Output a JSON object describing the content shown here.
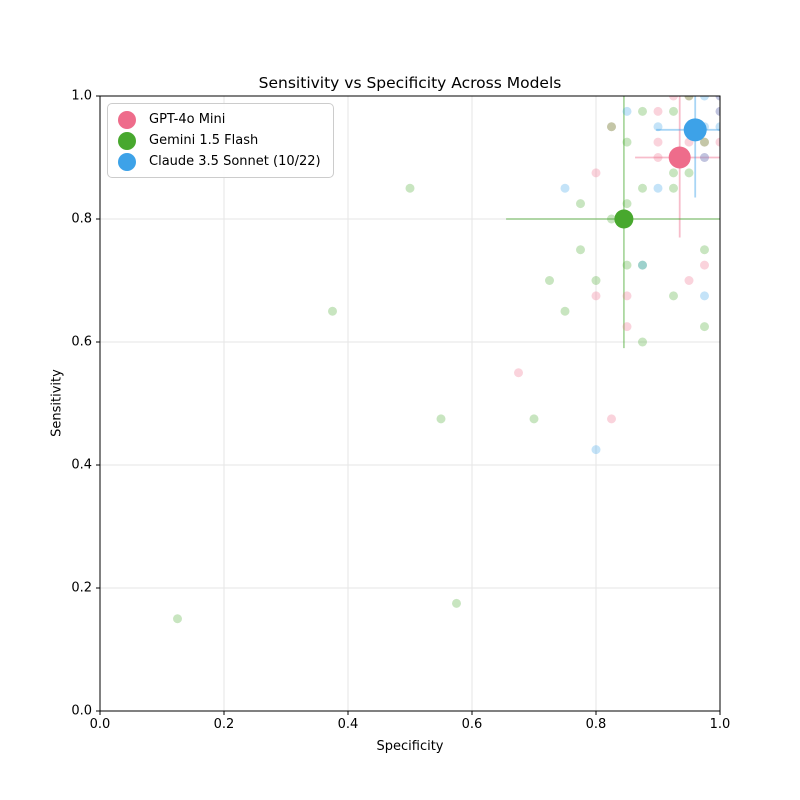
{
  "chart_data": {
    "type": "scatter",
    "title": "Sensitivity vs Specificity Across Models",
    "xlabel": "Specificity",
    "ylabel": "Sensitivity",
    "xlim": [
      0.0,
      1.0
    ],
    "ylim": [
      0.0,
      1.0
    ],
    "xticks": [
      0.0,
      0.2,
      0.4,
      0.6,
      0.8,
      1.0
    ],
    "yticks": [
      0.0,
      0.2,
      0.4,
      0.6,
      0.8,
      1.0
    ],
    "xtick_labels": [
      "0.0",
      "0.2",
      "0.4",
      "0.6",
      "0.8",
      "1.0"
    ],
    "ytick_labels": [
      "0.0",
      "0.2",
      "0.4",
      "0.6",
      "0.8",
      "1.0"
    ],
    "grid": true,
    "legend": {
      "position": "upper left",
      "entries": [
        "GPT-4o Mini",
        "Gemini 1.5 Flash",
        "Claude 3.5 Sonnet (10/22)"
      ]
    },
    "series": [
      {
        "name": "GPT-4o Mini",
        "color": "#EE6C8B",
        "marker_radius": 11,
        "summary_point": {
          "x": 0.935,
          "y": 0.9,
          "xerr": 0.072,
          "yerr": 0.13
        },
        "scatter_points": [
          [
            0.675,
            0.55
          ],
          [
            0.8,
            0.875
          ],
          [
            0.825,
            0.475
          ],
          [
            0.8,
            0.675
          ],
          [
            0.85,
            0.675
          ],
          [
            0.85,
            0.625
          ],
          [
            0.95,
            0.7
          ],
          [
            0.975,
            0.725
          ],
          [
            0.9,
            0.9
          ],
          [
            0.9,
            0.925
          ],
          [
            0.9,
            0.975
          ],
          [
            0.925,
            1.0
          ],
          [
            0.95,
            1.0
          ],
          [
            0.95,
            0.925
          ],
          [
            0.975,
            0.925
          ],
          [
            1.0,
            0.925
          ],
          [
            0.825,
            0.95
          ],
          [
            0.975,
            0.9
          ],
          [
            1.0,
            0.975
          ],
          [
            1.0,
            1.0
          ]
        ]
      },
      {
        "name": "Gemini 1.5 Flash",
        "color": "#48A82E",
        "marker_radius": 9.5,
        "summary_point": {
          "x": 0.845,
          "y": 0.8,
          "xerr": 0.19,
          "yerr": 0.21
        },
        "scatter_points": [
          [
            0.125,
            0.15
          ],
          [
            0.375,
            0.65
          ],
          [
            0.5,
            0.85
          ],
          [
            0.55,
            0.475
          ],
          [
            0.575,
            0.175
          ],
          [
            0.7,
            0.475
          ],
          [
            0.725,
            0.7
          ],
          [
            0.75,
            0.65
          ],
          [
            0.775,
            0.825
          ],
          [
            0.775,
            0.75
          ],
          [
            0.8,
            0.7
          ],
          [
            0.825,
            0.8
          ],
          [
            0.85,
            0.825
          ],
          [
            0.85,
            0.725
          ],
          [
            0.875,
            0.725
          ],
          [
            0.875,
            0.85
          ],
          [
            0.875,
            0.6
          ],
          [
            0.925,
            0.85
          ],
          [
            0.925,
            0.875
          ],
          [
            0.95,
            0.875
          ],
          [
            0.925,
            0.675
          ],
          [
            0.975,
            0.75
          ],
          [
            0.975,
            0.625
          ],
          [
            0.875,
            0.975
          ],
          [
            0.925,
            0.975
          ],
          [
            0.95,
            1.0
          ],
          [
            0.85,
            0.925
          ],
          [
            0.825,
            0.95
          ],
          [
            0.975,
            0.925
          ]
        ]
      },
      {
        "name": "Claude 3.5 Sonnet (10/22)",
        "color": "#3DA2E8",
        "marker_radius": 11.5,
        "summary_point": {
          "x": 0.96,
          "y": 0.945,
          "xerr": 0.063,
          "yerr": 0.11
        },
        "scatter_points": [
          [
            0.75,
            0.85
          ],
          [
            0.8,
            0.425
          ],
          [
            0.875,
            0.725
          ],
          [
            0.9,
            0.85
          ],
          [
            0.975,
            0.675
          ],
          [
            0.85,
            0.975
          ],
          [
            0.9,
            0.95
          ],
          [
            0.975,
            0.95
          ],
          [
            1.0,
            0.95
          ],
          [
            0.975,
            1.0
          ],
          [
            1.0,
            1.0
          ],
          [
            1.0,
            0.975
          ],
          [
            0.975,
            0.9
          ]
        ]
      }
    ],
    "style": {
      "point_alpha": 0.3,
      "point_radius": 4.5,
      "errorbar_alpha": 0.45,
      "errorbar_width": 1.8,
      "grid_color": "#e6e6e6",
      "spine_color": "#000000",
      "background": "#ffffff"
    }
  }
}
